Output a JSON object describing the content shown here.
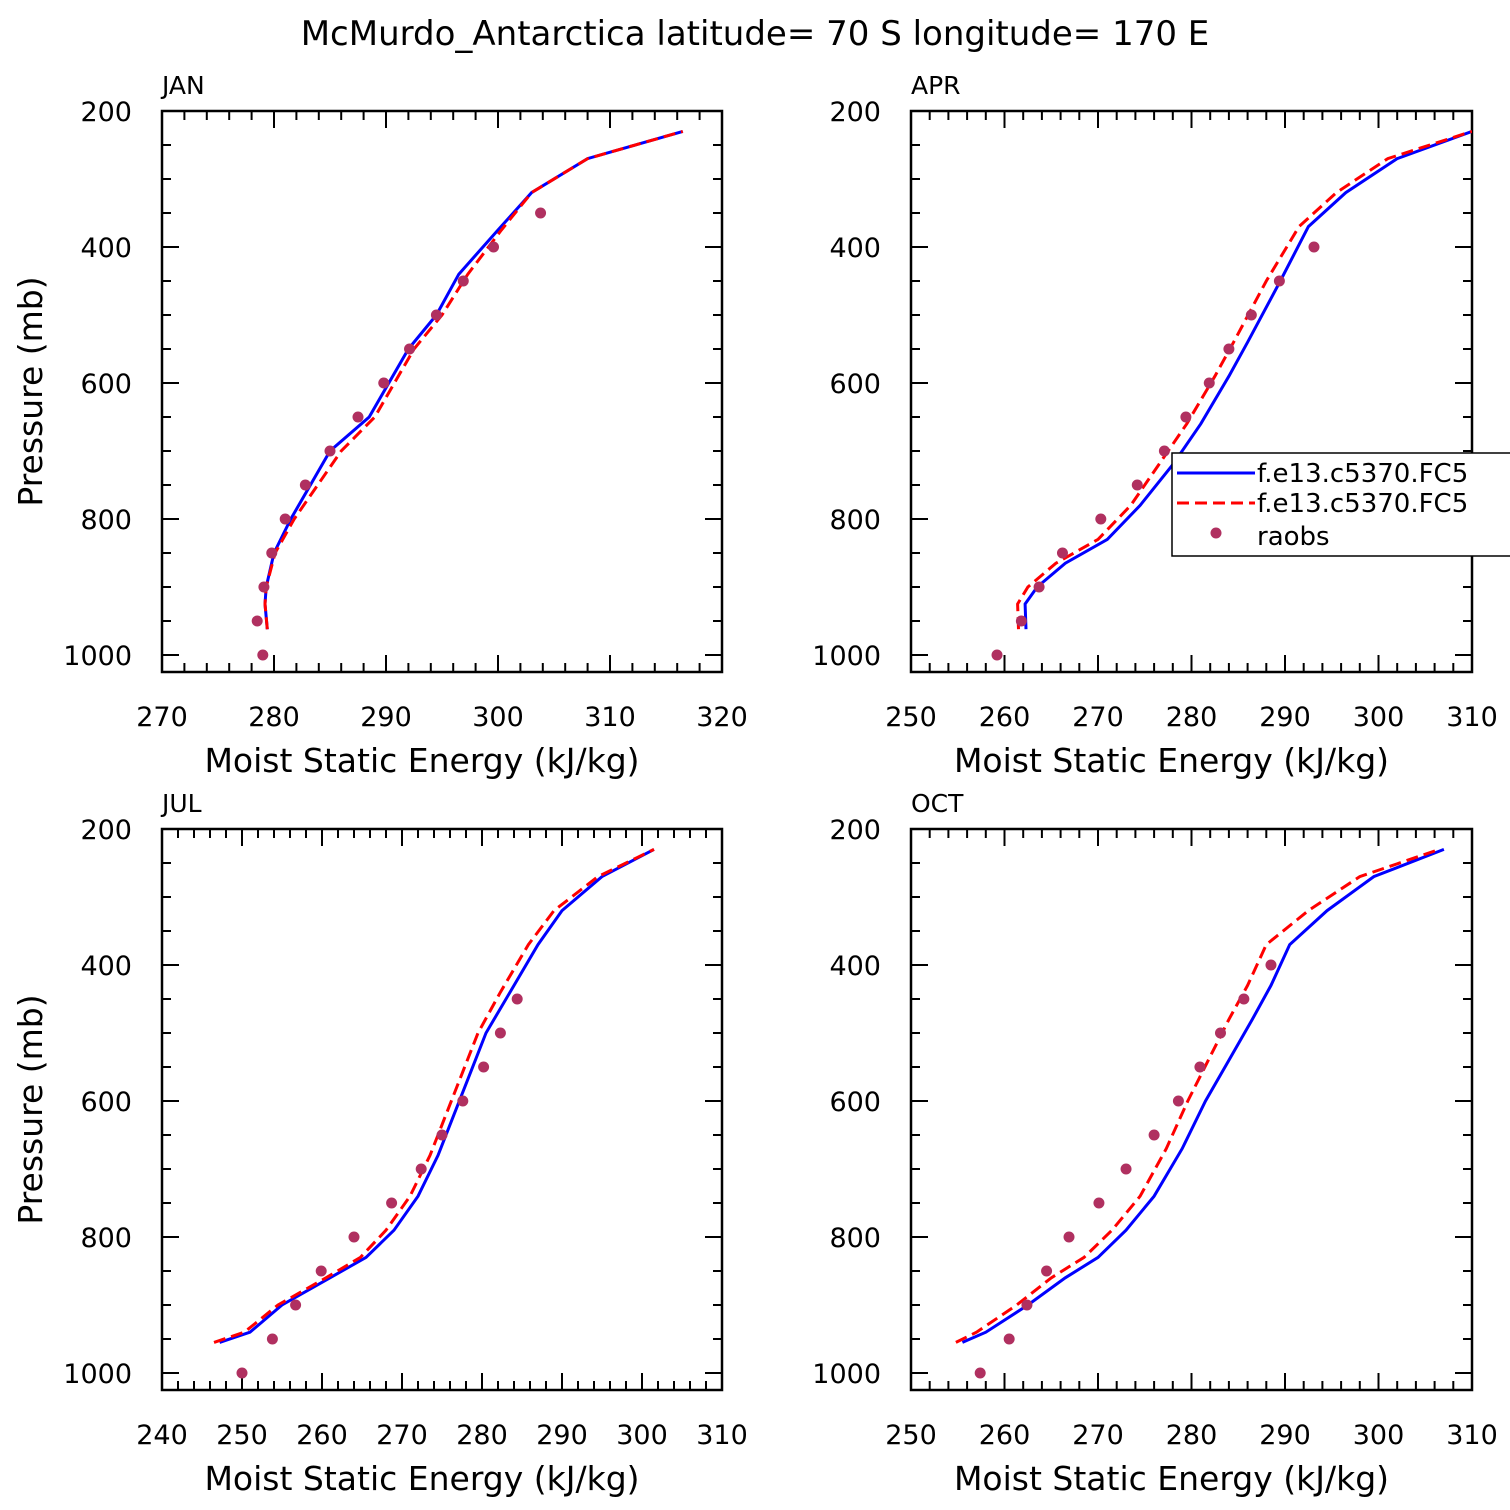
{
  "title": "McMurdo_Antarctica  latitude= 70 S longitude= 170 E",
  "colors": {
    "model1": "#0000ff",
    "model2": "#ff0000",
    "raobs": "#b03060",
    "axes": "#000000"
  },
  "legend": {
    "entries": [
      "f.e13.c5370.FC5",
      "f.e13.c5370.FC5",
      "raobs"
    ],
    "placement": "right-middle of APR panel (clipped)"
  },
  "chart_data": [
    {
      "type": "line",
      "panel": "JAN",
      "xlabel": "Moist Static Energy (kJ/kg)",
      "ylabel": "Pressure (mb)",
      "xlim": [
        270,
        320
      ],
      "ylim": [
        1025,
        200
      ],
      "xticks": [
        270,
        280,
        290,
        300,
        310,
        320
      ],
      "yticks": [
        200,
        400,
        600,
        800,
        1000
      ],
      "series": [
        {
          "style": "solid-blue",
          "x": [
            279.4,
            279.2,
            279.3,
            280.0,
            281.5,
            285.0,
            288.5,
            292.0,
            294.5,
            296.5,
            300.0,
            303.0,
            308.0,
            316.5
          ],
          "y": [
            962,
            925,
            900,
            850,
            800,
            700,
            650,
            550,
            500,
            440,
            375,
            320,
            270,
            230
          ]
        },
        {
          "style": "dashed-red",
          "x": [
            279.4,
            279.2,
            279.3,
            280.1,
            281.8,
            286.0,
            289.0,
            292.5,
            295.0,
            297.3,
            300.3,
            303.0,
            308.0,
            316.5
          ],
          "y": [
            962,
            925,
            900,
            850,
            800,
            700,
            650,
            550,
            500,
            440,
            375,
            320,
            270,
            230
          ]
        },
        {
          "style": "dots-raobs",
          "x": [
            279.0,
            278.5,
            279.1,
            279.8,
            281.0,
            282.8,
            285.0,
            287.5,
            289.8,
            292.1,
            294.5,
            296.9,
            299.6,
            303.8
          ],
          "y": [
            1000,
            950,
            900,
            850,
            800,
            750,
            700,
            650,
            600,
            550,
            500,
            450,
            400,
            350
          ]
        }
      ]
    },
    {
      "type": "line",
      "panel": "APR",
      "xlabel": "Moist Static Energy (kJ/kg)",
      "ylabel": "",
      "xlim": [
        250,
        310
      ],
      "ylim": [
        1025,
        200
      ],
      "xticks": [
        250,
        260,
        270,
        280,
        290,
        300,
        310
      ],
      "yticks": [
        200,
        400,
        600,
        800,
        1000
      ],
      "series": [
        {
          "style": "solid-blue",
          "x": [
            262.3,
            262.2,
            263.5,
            266.5,
            271.0,
            274.5,
            278.0,
            281.0,
            284.0,
            286.0,
            289.5,
            292.5,
            296.5,
            302.0,
            310.0
          ],
          "y": [
            962,
            925,
            900,
            865,
            830,
            780,
            720,
            660,
            590,
            540,
            450,
            370,
            320,
            270,
            230
          ]
        },
        {
          "style": "dashed-red",
          "x": [
            261.5,
            261.4,
            262.5,
            265.5,
            270.0,
            273.5,
            276.5,
            279.5,
            282.5,
            284.5,
            288.0,
            291.5,
            295.5,
            301.0,
            310.0
          ],
          "y": [
            962,
            925,
            900,
            865,
            830,
            780,
            720,
            660,
            590,
            540,
            450,
            370,
            320,
            270,
            230
          ]
        },
        {
          "style": "dots-raobs",
          "x": [
            259.2,
            261.8,
            263.7,
            266.2,
            270.3,
            274.2,
            277.1,
            279.4,
            281.9,
            284.0,
            286.4,
            289.4,
            293.1
          ],
          "y": [
            1000,
            950,
            900,
            850,
            800,
            750,
            700,
            650,
            600,
            550,
            500,
            450,
            400
          ]
        }
      ]
    },
    {
      "type": "line",
      "panel": "JUL",
      "xlabel": "Moist Static Energy (kJ/kg)",
      "ylabel": "Pressure (mb)",
      "xlim": [
        240,
        310
      ],
      "ylim": [
        1025,
        200
      ],
      "xticks": [
        240,
        250,
        260,
        270,
        280,
        290,
        300,
        310
      ],
      "yticks": [
        200,
        400,
        600,
        800,
        1000
      ],
      "series": [
        {
          "style": "solid-blue",
          "x": [
            247.2,
            251.0,
            255.0,
            261.0,
            265.5,
            269.0,
            272.0,
            274.5,
            276.5,
            278.5,
            280.5,
            283.5,
            287.0,
            290.0,
            295.0,
            301.5
          ],
          "y": [
            955,
            940,
            900,
            860,
            830,
            790,
            740,
            680,
            620,
            560,
            500,
            440,
            370,
            320,
            270,
            230
          ]
        },
        {
          "style": "dashed-red",
          "x": [
            246.5,
            250.3,
            254.5,
            260.5,
            264.8,
            268.0,
            271.0,
            273.5,
            275.5,
            277.5,
            279.5,
            282.3,
            285.8,
            289.0,
            294.5,
            301.5
          ],
          "y": [
            955,
            940,
            900,
            860,
            830,
            790,
            740,
            680,
            620,
            560,
            500,
            440,
            370,
            320,
            270,
            230
          ]
        },
        {
          "style": "dots-raobs",
          "x": [
            250.0,
            253.8,
            256.7,
            259.9,
            264.0,
            268.7,
            272.4,
            275.0,
            277.6,
            280.2,
            282.3,
            284.4
          ],
          "y": [
            1000,
            950,
            900,
            850,
            800,
            750,
            700,
            650,
            600,
            550,
            500,
            450
          ]
        }
      ]
    },
    {
      "type": "line",
      "panel": "OCT",
      "xlabel": "Moist Static Energy (kJ/kg)",
      "ylabel": "",
      "xlim": [
        250,
        310
      ],
      "ylim": [
        1025,
        200
      ],
      "xticks": [
        250,
        260,
        270,
        280,
        290,
        300,
        310
      ],
      "yticks": [
        200,
        400,
        600,
        800,
        1000
      ],
      "series": [
        {
          "style": "solid-blue",
          "x": [
            255.5,
            258.0,
            262.5,
            266.5,
            270.0,
            273.0,
            276.0,
            279.0,
            281.5,
            284.0,
            286.5,
            288.5,
            290.5,
            294.5,
            299.5,
            307.0
          ],
          "y": [
            955,
            940,
            900,
            860,
            830,
            790,
            740,
            670,
            600,
            540,
            480,
            430,
            370,
            320,
            270,
            230
          ]
        },
        {
          "style": "dashed-red",
          "x": [
            254.8,
            257.0,
            261.3,
            265.0,
            268.5,
            271.5,
            274.5,
            277.3,
            279.6,
            281.8,
            284.0,
            286.0,
            288.0,
            292.5,
            298.0,
            306.5
          ],
          "y": [
            955,
            940,
            900,
            860,
            830,
            790,
            740,
            670,
            600,
            540,
            480,
            430,
            370,
            320,
            270,
            230
          ]
        },
        {
          "style": "dots-raobs",
          "x": [
            257.4,
            260.5,
            262.4,
            264.5,
            266.9,
            270.1,
            273.0,
            276.0,
            278.6,
            280.9,
            283.1,
            285.6,
            288.5
          ],
          "y": [
            1000,
            950,
            900,
            850,
            800,
            750,
            700,
            650,
            600,
            550,
            500,
            450,
            400
          ]
        }
      ]
    }
  ]
}
